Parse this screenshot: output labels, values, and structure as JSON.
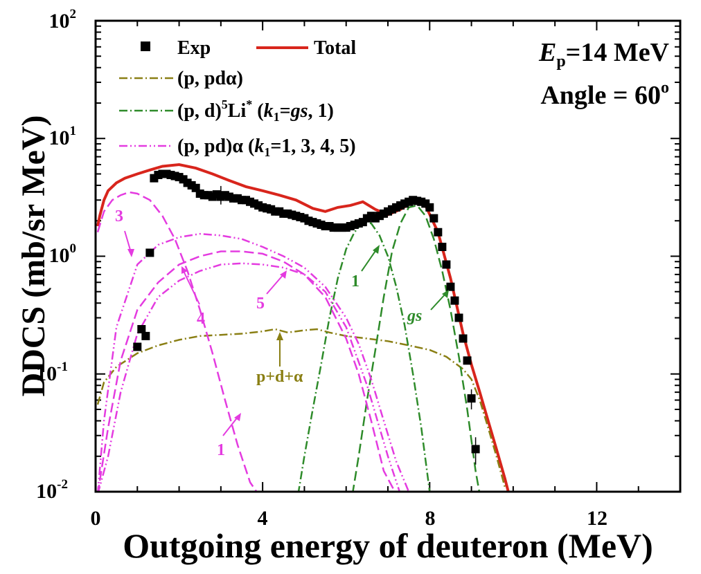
{
  "chart_data": {
    "type": "line",
    "xlabel": "Outgoing energy of deuteron (MeV)",
    "ylabel": "DDCS (mb/sr MeV)",
    "xlim": [
      0,
      14
    ],
    "ylim_log10": [
      -2,
      2
    ],
    "x_ticks": [
      0,
      4,
      8,
      12
    ],
    "x_tick_labels": [
      "0",
      "4",
      "8",
      "12"
    ],
    "y_tick_exponents": [
      -2,
      -1,
      0,
      1,
      2
    ],
    "y_tick_base": "10",
    "y_tick_exps": [
      "-2",
      "-1",
      "0",
      "1",
      "2"
    ],
    "annotation": {
      "line1_italic": "E",
      "line1_sub": "p",
      "line1_rest": "=14 MeV",
      "line2_text": "Angle = 60",
      "line2_sup": "o"
    },
    "legend": [
      {
        "id": "exp",
        "label": "Exp"
      },
      {
        "id": "total",
        "label": "Total"
      },
      {
        "id": "pda",
        "label": "(p, pdα)"
      },
      {
        "id": "li5",
        "label_a": "(p, d)",
        "label_sup1": "5",
        "label_b": "Li",
        "label_sup2": "*",
        "label_c": " (",
        "label_k": "k",
        "label_ksub": "1",
        "label_d": "=",
        "label_gs": "gs",
        "label_e": ", 1)"
      },
      {
        "id": "ppd",
        "label_a": "(p, pd)α (",
        "label_k": "k",
        "label_ksub": "1",
        "label_b": "=1, 3, 4, 5)"
      }
    ],
    "curve_labels": {
      "m3": "3",
      "m4": "4",
      "m5": "5",
      "m1": "1",
      "g1": "1",
      "ggs": "gs",
      "pda": "p+d+α"
    },
    "series": [
      {
        "name": "Exp",
        "kind": "points",
        "color": "#000000",
        "x": [
          1.0,
          1.1,
          1.2,
          1.3,
          1.4,
          1.5,
          1.6,
          1.7,
          1.8,
          1.9,
          2.0,
          2.1,
          2.2,
          2.3,
          2.4,
          2.5,
          2.6,
          2.7,
          2.8,
          2.9,
          3.0,
          3.1,
          3.2,
          3.3,
          3.4,
          3.5,
          3.6,
          3.7,
          3.8,
          3.9,
          4.0,
          4.1,
          4.2,
          4.3,
          4.4,
          4.5,
          4.6,
          4.7,
          4.8,
          4.9,
          5.0,
          5.1,
          5.2,
          5.3,
          5.4,
          5.5,
          5.6,
          5.7,
          5.8,
          5.9,
          6.0,
          6.1,
          6.2,
          6.3,
          6.4,
          6.5,
          6.6,
          6.7,
          6.8,
          6.9,
          7.0,
          7.1,
          7.2,
          7.3,
          7.4,
          7.5,
          7.6,
          7.7,
          7.8,
          7.9,
          8.0,
          8.1,
          8.2,
          8.3,
          8.4,
          8.5,
          8.6,
          8.7,
          8.8,
          8.9,
          9.0,
          9.1
        ],
        "y": [
          0.17,
          0.24,
          0.21,
          1.07,
          4.6,
          4.9,
          5.0,
          5.0,
          4.9,
          4.8,
          4.7,
          4.5,
          4.2,
          4.0,
          3.8,
          3.4,
          3.3,
          3.3,
          3.2,
          3.35,
          3.2,
          3.3,
          3.2,
          3.1,
          3.1,
          3.0,
          3.0,
          2.9,
          2.8,
          2.7,
          2.6,
          2.55,
          2.5,
          2.4,
          2.4,
          2.3,
          2.3,
          2.25,
          2.2,
          2.15,
          2.1,
          2.0,
          1.95,
          1.9,
          1.85,
          1.8,
          1.8,
          1.75,
          1.75,
          1.75,
          1.75,
          1.8,
          1.85,
          1.9,
          1.95,
          2.1,
          2.2,
          2.1,
          2.2,
          2.3,
          2.4,
          2.5,
          2.6,
          2.7,
          2.8,
          2.9,
          3.0,
          2.95,
          2.9,
          2.8,
          2.6,
          2.1,
          1.6,
          1.2,
          0.85,
          0.55,
          0.42,
          0.3,
          0.2,
          0.13,
          0.062,
          0.023
        ]
      },
      {
        "name": "Total",
        "kind": "solid",
        "color": "#d8251c",
        "x": [
          0.05,
          0.1,
          0.2,
          0.3,
          0.5,
          0.7,
          1.0,
          1.3,
          1.6,
          2.0,
          2.4,
          2.8,
          3.2,
          3.6,
          4.0,
          4.4,
          4.8,
          5.2,
          5.5,
          5.8,
          6.1,
          6.4,
          6.7,
          7.0,
          7.3,
          7.6,
          7.9,
          8.2,
          8.5,
          8.8,
          9.0,
          9.2,
          9.4,
          9.6,
          9.8,
          9.9
        ],
        "y": [
          1.8,
          2.2,
          3.0,
          3.6,
          4.2,
          4.6,
          5.0,
          5.4,
          5.8,
          6.0,
          5.6,
          5.0,
          4.4,
          3.9,
          3.6,
          3.3,
          3.0,
          2.55,
          2.4,
          2.6,
          2.7,
          2.9,
          2.5,
          2.25,
          2.5,
          2.9,
          2.7,
          1.6,
          0.65,
          0.22,
          0.12,
          0.07,
          0.04,
          0.023,
          0.013,
          0.0095
        ]
      },
      {
        "name": "(p, pdα)",
        "kind": "dashdot",
        "color": "#8a7f14",
        "x": [
          0.05,
          0.2,
          0.5,
          1.0,
          1.5,
          2.0,
          2.5,
          3.0,
          3.5,
          4.0,
          4.3,
          4.6,
          5.0,
          5.3,
          5.6,
          6.0,
          6.5,
          7.0,
          7.5,
          8.0,
          8.4,
          8.8,
          9.0,
          9.2,
          9.4,
          9.6,
          9.8
        ],
        "y": [
          0.055,
          0.085,
          0.115,
          0.15,
          0.175,
          0.195,
          0.21,
          0.215,
          0.22,
          0.23,
          0.24,
          0.225,
          0.235,
          0.24,
          0.225,
          0.21,
          0.2,
          0.19,
          0.175,
          0.16,
          0.14,
          0.11,
          0.09,
          0.06,
          0.035,
          0.02,
          0.011
        ]
      },
      {
        "name": "(p, d)5Li* k1=1",
        "kind": "dashdot",
        "color": "#2e8b2a",
        "x": [
          4.85,
          5.0,
          5.2,
          5.4,
          5.6,
          5.8,
          6.0,
          6.2,
          6.4,
          6.6,
          6.8,
          7.0,
          7.2,
          7.4,
          7.6,
          7.8,
          8.0
        ],
        "y": [
          0.0095,
          0.02,
          0.05,
          0.12,
          0.3,
          0.65,
          1.15,
          1.6,
          1.95,
          1.9,
          1.5,
          1.0,
          0.55,
          0.26,
          0.1,
          0.035,
          0.01
        ]
      },
      {
        "name": "(p, d)5Li* k1=gs",
        "kind": "dashed",
        "color": "#2e8b2a",
        "x": [
          6.15,
          6.3,
          6.5,
          6.7,
          6.9,
          7.1,
          7.3,
          7.5,
          7.7,
          7.9,
          8.1,
          8.3,
          8.5,
          8.7,
          8.9,
          9.1,
          9.2
        ],
        "y": [
          0.0095,
          0.02,
          0.06,
          0.16,
          0.45,
          1.1,
          1.9,
          2.6,
          2.7,
          2.2,
          1.4,
          0.75,
          0.35,
          0.14,
          0.05,
          0.015,
          0.0095
        ]
      },
      {
        "name": "(p, pd)α k1=1",
        "kind": "dashed",
        "color": "#e43be0",
        "x": [
          0.05,
          0.2,
          0.4,
          0.6,
          0.8,
          1.0,
          1.3,
          1.6,
          1.9,
          2.2,
          2.5,
          2.8,
          3.1,
          3.4,
          3.7,
          3.9,
          4.1
        ],
        "y": [
          1.6,
          2.4,
          3.0,
          3.3,
          3.5,
          3.4,
          3.0,
          2.2,
          1.4,
          0.75,
          0.35,
          0.15,
          0.06,
          0.025,
          0.012,
          0.0095,
          0.0095
        ]
      },
      {
        "name": "(p, pd)α k1=3",
        "kind": "dashdotdot",
        "color": "#e43be0",
        "x": [
          0.05,
          0.2,
          0.5,
          1.0,
          1.5,
          2.0,
          2.5,
          3.0,
          3.5,
          4.0,
          4.5,
          5.0,
          5.5,
          6.0,
          6.3,
          6.6,
          6.9,
          7.2,
          7.5,
          7.8
        ],
        "y": [
          0.0095,
          0.04,
          0.25,
          0.85,
          1.25,
          1.45,
          1.55,
          1.5,
          1.4,
          1.2,
          1.0,
          0.8,
          0.55,
          0.3,
          0.18,
          0.09,
          0.04,
          0.018,
          0.01,
          0.0095
        ]
      },
      {
        "name": "(p, pd)α k1=4",
        "kind": "dashed",
        "color": "#e43be0",
        "x": [
          0.05,
          0.3,
          0.6,
          1.0,
          1.5,
          2.0,
          2.5,
          3.0,
          3.5,
          4.0,
          4.5,
          5.0,
          5.5,
          6.0,
          6.3,
          6.6,
          6.9,
          7.2
        ],
        "y": [
          0.0095,
          0.035,
          0.13,
          0.35,
          0.6,
          0.85,
          1.0,
          1.1,
          1.1,
          1.05,
          0.9,
          0.7,
          0.45,
          0.2,
          0.1,
          0.04,
          0.015,
          0.0095
        ]
      },
      {
        "name": "(p, pd)α k1=5",
        "kind": "dashdotdot",
        "color": "#e43be0",
        "x": [
          0.05,
          0.3,
          0.6,
          1.0,
          1.5,
          2.0,
          2.5,
          3.0,
          3.5,
          4.0,
          4.5,
          5.0,
          5.5,
          6.0,
          6.5,
          7.0,
          7.3
        ],
        "y": [
          0.0095,
          0.02,
          0.07,
          0.22,
          0.45,
          0.62,
          0.75,
          0.85,
          0.87,
          0.85,
          0.8,
          0.7,
          0.5,
          0.25,
          0.08,
          0.02,
          0.0095
        ]
      }
    ]
  }
}
